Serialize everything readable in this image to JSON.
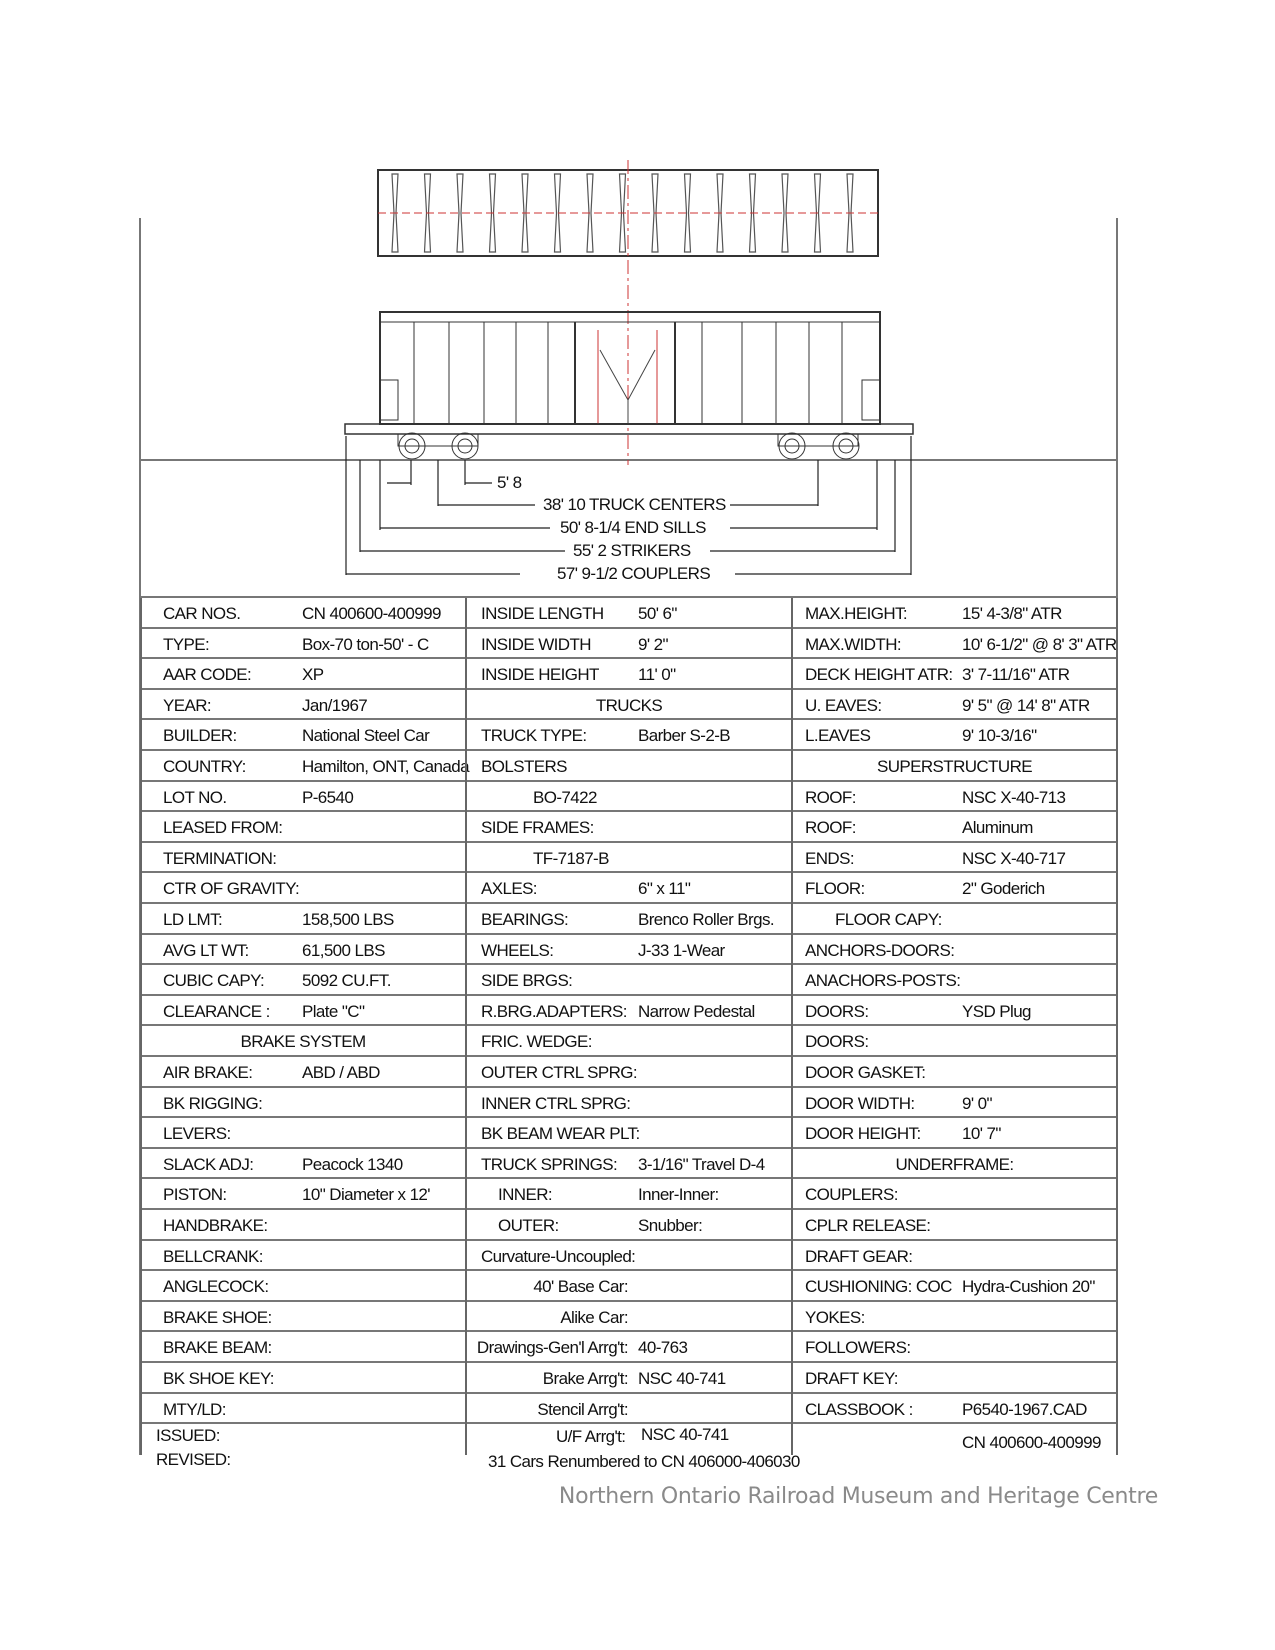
{
  "dimensions": {
    "axle_spacing": "5' 8",
    "truck_centers": "38' 10 TRUCK CENTERS",
    "end_sills": "50' 8-1/4 END SILLS",
    "strikers": "55' 2 STRIKERS",
    "couplers": "57' 9-1/2 COUPLERS"
  },
  "columns": [
    [
      {
        "label": "CAR NOS.",
        "value": "CN 400600-400999"
      },
      {
        "label": "TYPE:",
        "value": "Box-70 ton-50' - C"
      },
      {
        "label": "AAR CODE:",
        "value": "XP"
      },
      {
        "label": "YEAR:",
        "value": "Jan/1967"
      },
      {
        "label": "BUILDER:",
        "value": "National Steel Car"
      },
      {
        "label": "COUNTRY:",
        "value": "Hamilton, ONT, Canada"
      },
      {
        "label": "LOT NO.",
        "value": "P-6540"
      },
      {
        "label": "LEASED FROM:",
        "value": ""
      },
      {
        "label": "TERMINATION:",
        "value": ""
      },
      {
        "label": "CTR OF GRAVITY:",
        "value": ""
      },
      {
        "label": "LD LMT:",
        "value": "158,500 LBS"
      },
      {
        "label": "AVG LT WT:",
        "value": "61,500 LBS"
      },
      {
        "label": "CUBIC CAPY:",
        "value": "5092 CU.FT."
      },
      {
        "label": "CLEARANCE :",
        "value": "Plate \"C\""
      },
      {
        "label": "BRAKE SYSTEM",
        "value": "",
        "kind": "header"
      },
      {
        "label": "AIR BRAKE:",
        "value": "ABD / ABD"
      },
      {
        "label": "BK RIGGING:",
        "value": ""
      },
      {
        "label": "LEVERS:",
        "value": ""
      },
      {
        "label": "SLACK ADJ:",
        "value": "Peacock 1340"
      },
      {
        "label": "PISTON:",
        "value": "10\" Diameter x 12'"
      },
      {
        "label": "HANDBRAKE:",
        "value": ""
      },
      {
        "label": "BELLCRANK:",
        "value": ""
      },
      {
        "label": "ANGLECOCK:",
        "value": ""
      },
      {
        "label": "BRAKE SHOE:",
        "value": ""
      },
      {
        "label": "BRAKE BEAM:",
        "value": ""
      },
      {
        "label": "BK SHOE KEY:",
        "value": ""
      },
      {
        "label": "MTY/LD:",
        "value": ""
      }
    ],
    [
      {
        "label": "INSIDE LENGTH",
        "value": "50'  6\""
      },
      {
        "label": "INSIDE WIDTH",
        "value": "9' 2\""
      },
      {
        "label": "INSIDE HEIGHT",
        "value": "11' 0\""
      },
      {
        "label": "TRUCKS",
        "value": "",
        "kind": "header"
      },
      {
        "label": "TRUCK TYPE:",
        "value": "Barber S-2-B"
      },
      {
        "label": "BOLSTERS",
        "value": ""
      },
      {
        "label": "BO-7422",
        "value": "",
        "kind": "sub"
      },
      {
        "label": "SIDE FRAMES:",
        "value": ""
      },
      {
        "label": "TF-7187-B",
        "value": "",
        "kind": "sub"
      },
      {
        "label": "AXLES:",
        "value": "6\" x 11\""
      },
      {
        "label": "BEARINGS:",
        "value": "Brenco Roller Brgs."
      },
      {
        "label": "WHEELS:",
        "value": "J-33  1-Wear"
      },
      {
        "label": "SIDE BRGS:",
        "value": ""
      },
      {
        "label": "R.BRG.ADAPTERS:",
        "value": "Narrow Pedestal"
      },
      {
        "label": "FRIC. WEDGE:",
        "value": ""
      },
      {
        "label": "OUTER CTRL SPRG:",
        "value": ""
      },
      {
        "label": "INNER CTRL SPRG:",
        "value": ""
      },
      {
        "label": "BK BEAM WEAR PLT:",
        "value": ""
      },
      {
        "label": "TRUCK SPRINGS:",
        "value": "3-1/16\" Travel   D-4"
      },
      {
        "label": "INNER:",
        "value": "Inner-Inner:",
        "kind": "indent"
      },
      {
        "label": "OUTER:",
        "value": "Snubber:",
        "kind": "indent"
      },
      {
        "label": "Curvature-Uncoupled:",
        "value": ""
      },
      {
        "label": "40' Base Car:",
        "value": "",
        "kind": "right"
      },
      {
        "label": "Alike Car:",
        "value": "",
        "kind": "right"
      },
      {
        "label": "Drawings-Gen'l Arrg't:",
        "value": "40-763",
        "kind": "right"
      },
      {
        "label": "Brake Arrg't:",
        "value": "NSC   40-741",
        "kind": "right"
      },
      {
        "label": "Stencil Arrg't:",
        "value": "",
        "kind": "right"
      }
    ],
    [
      {
        "label": "MAX.HEIGHT:",
        "value": "15'  4-3/8\" ATR"
      },
      {
        "label": "MAX.WIDTH:",
        "value": "10' 6-1/2\" @ 8' 3\" ATR"
      },
      {
        "label": "DECK HEIGHT ATR:",
        "value": "3' 7-11/16\" ATR"
      },
      {
        "label": "U. EAVES:",
        "value": "9' 5\" @ 14' 8\" ATR"
      },
      {
        "label": "L.EAVES",
        "value": "9' 10-3/16\""
      },
      {
        "label": "SUPERSTRUCTURE",
        "value": "",
        "kind": "header"
      },
      {
        "label": "ROOF:",
        "value": "NSC   X-40-713"
      },
      {
        "label": "ROOF:",
        "value": "Aluminum"
      },
      {
        "label": "ENDS:",
        "value": "NSC   X-40-717"
      },
      {
        "label": "FLOOR:",
        "value": "2\" Goderich"
      },
      {
        "label": "FLOOR CAPY:",
        "value": "",
        "kind": "sub"
      },
      {
        "label": "ANCHORS-DOORS:",
        "value": ""
      },
      {
        "label": "ANACHORS-POSTS:",
        "value": ""
      },
      {
        "label": "DOORS:",
        "value": "YSD Plug"
      },
      {
        "label": "DOORS:",
        "value": ""
      },
      {
        "label": "DOOR GASKET:",
        "value": ""
      },
      {
        "label": "DOOR WIDTH:",
        "value": "9' 0\""
      },
      {
        "label": "DOOR HEIGHT:",
        "value": "10' 7\""
      },
      {
        "label": "UNDERFRAME:",
        "value": "",
        "kind": "header"
      },
      {
        "label": "COUPLERS:",
        "value": ""
      },
      {
        "label": "CPLR RELEASE:",
        "value": ""
      },
      {
        "label": "DRAFT GEAR:",
        "value": ""
      },
      {
        "label": "CUSHIONING:   COC",
        "value": "Hydra-Cushion 20\""
      },
      {
        "label": "YOKES:",
        "value": ""
      },
      {
        "label": "FOLLOWERS:",
        "value": ""
      },
      {
        "label": "DRAFT KEY:",
        "value": ""
      },
      {
        "label": "CLASSBOOK :",
        "value": "P6540-1967.CAD"
      }
    ]
  ],
  "bottom": {
    "issued": "ISSUED:",
    "revised": "REVISED:",
    "uf_label": "U/F Arrg't:",
    "uf_value": "NSC   40-741",
    "renumbered": "31 Cars Renumbered to CN 406000-406030",
    "car_nos": "CN 400600-400999"
  },
  "footer": "Northern Ontario Railroad Museum and Heritage Centre"
}
